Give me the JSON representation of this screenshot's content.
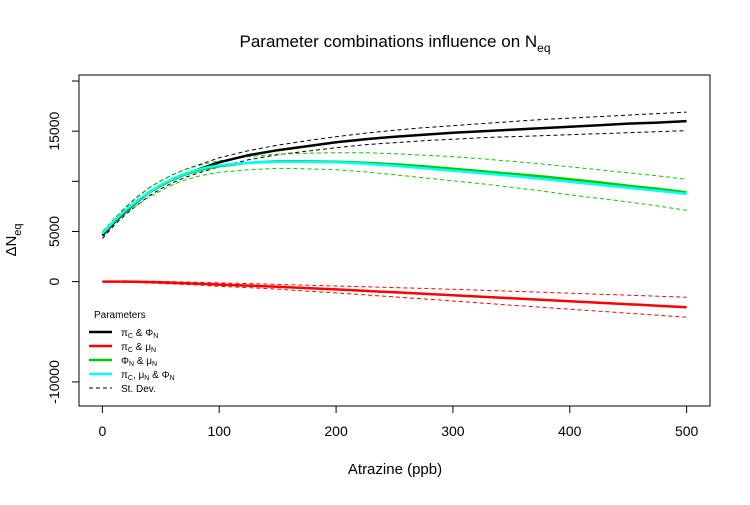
{
  "chart_data": {
    "type": "line",
    "title": {
      "main": "Parameter combinations influence on N",
      "sub": "eq"
    },
    "xlabel": "Atrazine (ppb)",
    "ylabel": {
      "main": "ΔN",
      "sub": "eq"
    },
    "xlim": [
      -20,
      520
    ],
    "ylim": [
      -12400,
      20600
    ],
    "x_ticks": [
      0,
      100,
      200,
      300,
      400,
      500
    ],
    "x_tick_labels": [
      "0",
      "100",
      "200",
      "300",
      "400",
      "500"
    ],
    "y_ticks": [
      -10000,
      0,
      5000,
      15000
    ],
    "y_tick_labels": [
      "-10000",
      "0",
      "5000",
      "15000"
    ],
    "y_minor_ticks": [
      10000,
      20000
    ],
    "grid": false,
    "legend": {
      "title": "Parameters",
      "position": "bottom-left",
      "items": [
        {
          "series_index": 0,
          "parts": [
            {
              "t": "π"
            },
            {
              "t": "C",
              "sub": true
            },
            {
              "t": " & Φ"
            },
            {
              "t": "N",
              "sub": true
            }
          ]
        },
        {
          "series_index": 1,
          "parts": [
            {
              "t": "π"
            },
            {
              "t": "C",
              "sub": true
            },
            {
              "t": " & μ"
            },
            {
              "t": "N",
              "sub": true
            }
          ]
        },
        {
          "series_index": 2,
          "parts": [
            {
              "t": "Φ"
            },
            {
              "t": "N",
              "sub": true
            },
            {
              "t": " & μ"
            },
            {
              "t": "N",
              "sub": true
            }
          ]
        },
        {
          "series_index": 3,
          "parts": [
            {
              "t": "π"
            },
            {
              "t": "C",
              "sub": true
            },
            {
              "t": ", μ"
            },
            {
              "t": "N",
              "sub": true
            },
            {
              "t": " & Φ"
            },
            {
              "t": "N",
              "sub": true
            }
          ]
        },
        {
          "series_index": null,
          "dashed": true,
          "parts": [
            {
              "t": "St. Dev."
            }
          ]
        }
      ]
    },
    "x": [
      0,
      10,
      20,
      30,
      40,
      50,
      60,
      70,
      80,
      90,
      100,
      125,
      150,
      175,
      200,
      225,
      250,
      275,
      300,
      325,
      350,
      375,
      400,
      425,
      450,
      475,
      500
    ],
    "series": [
      {
        "color": "#000000",
        "values": [
          4600,
          5900,
          7000,
          8000,
          8900,
          9600,
          10200,
          10700,
          11100,
          11500,
          11900,
          12600,
          13100,
          13500,
          13900,
          14200,
          14450,
          14650,
          14850,
          15000,
          15150,
          15300,
          15450,
          15600,
          15750,
          15850,
          16000
        ],
        "sd_upper": [
          4900,
          6200,
          7400,
          8450,
          9350,
          10050,
          10650,
          11150,
          11550,
          11950,
          12350,
          13050,
          13600,
          14050,
          14450,
          14800,
          15100,
          15350,
          15550,
          15750,
          15950,
          16150,
          16300,
          16450,
          16600,
          16750,
          16900
        ],
        "sd_lower": [
          4300,
          5600,
          6700,
          7650,
          8550,
          9250,
          9850,
          10350,
          10750,
          11100,
          11450,
          12150,
          12650,
          13000,
          13350,
          13650,
          13850,
          14050,
          14200,
          14350,
          14450,
          14550,
          14650,
          14750,
          14850,
          14950,
          15050
        ]
      },
      {
        "color": "#ff0000",
        "values": [
          0,
          0,
          0,
          -20,
          -50,
          -80,
          -120,
          -160,
          -200,
          -250,
          -300,
          -400,
          -520,
          -650,
          -780,
          -920,
          -1060,
          -1200,
          -1350,
          -1500,
          -1650,
          -1800,
          -1950,
          -2100,
          -2250,
          -2400,
          -2550
        ],
        "sd_upper": [
          50,
          60,
          70,
          60,
          40,
          20,
          -10,
          -40,
          -70,
          -100,
          -130,
          -200,
          -280,
          -360,
          -440,
          -520,
          -600,
          -680,
          -770,
          -860,
          -950,
          -1050,
          -1150,
          -1250,
          -1350,
          -1450,
          -1550
        ],
        "sd_lower": [
          -50,
          -60,
          -70,
          -100,
          -140,
          -180,
          -230,
          -280,
          -330,
          -400,
          -470,
          -600,
          -760,
          -940,
          -1120,
          -1320,
          -1520,
          -1720,
          -1930,
          -2140,
          -2350,
          -2550,
          -2750,
          -2950,
          -3150,
          -3350,
          -3550
        ]
      },
      {
        "color": "#00cc00",
        "values": [
          4800,
          6000,
          7100,
          8050,
          8900,
          9550,
          10150,
          10650,
          11000,
          11300,
          11500,
          11850,
          12000,
          12000,
          11950,
          11850,
          11700,
          11500,
          11250,
          11000,
          10750,
          10500,
          10200,
          9900,
          9550,
          9250,
          8900
        ],
        "sd_upper": [
          5000,
          6250,
          7450,
          8500,
          9350,
          10050,
          10650,
          11150,
          11500,
          11800,
          12050,
          12450,
          12700,
          12800,
          12850,
          12850,
          12750,
          12600,
          12450,
          12250,
          12000,
          11750,
          11450,
          11150,
          10850,
          10550,
          10200
        ],
        "sd_lower": [
          4600,
          5750,
          6800,
          7650,
          8450,
          9050,
          9650,
          10100,
          10450,
          10700,
          10900,
          11150,
          11300,
          11250,
          11150,
          10950,
          10650,
          10350,
          10050,
          9750,
          9400,
          9050,
          8650,
          8300,
          7950,
          7550,
          7100
        ]
      },
      {
        "color": "#00ffff",
        "values": [
          4800,
          6050,
          7150,
          8100,
          8950,
          9650,
          10250,
          10750,
          11100,
          11400,
          11600,
          11850,
          11950,
          11950,
          11900,
          11750,
          11550,
          11300,
          11050,
          10800,
          10550,
          10250,
          9950,
          9650,
          9350,
          9050,
          8750
        ]
      }
    ]
  }
}
